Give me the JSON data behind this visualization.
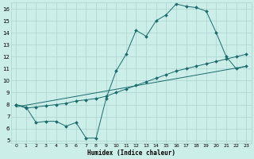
{
  "xlabel": "Humidex (Indice chaleur)",
  "bg_color": "#cceee8",
  "grid_color": "#aad4ce",
  "line_color": "#1a6b6b",
  "xlim": [
    -0.5,
    23.5
  ],
  "ylim": [
    4.8,
    16.5
  ],
  "yticks": [
    5,
    6,
    7,
    8,
    9,
    10,
    11,
    12,
    13,
    14,
    15,
    16
  ],
  "xticks": [
    0,
    1,
    2,
    3,
    4,
    5,
    6,
    7,
    8,
    9,
    10,
    11,
    12,
    13,
    14,
    15,
    16,
    17,
    18,
    19,
    20,
    21,
    22,
    23
  ],
  "line1_x": [
    0,
    1,
    2,
    3,
    4,
    5,
    6,
    7,
    8,
    9,
    10,
    11,
    12,
    13,
    14,
    15,
    16,
    17,
    18,
    19,
    20,
    21,
    22,
    23
  ],
  "line1_y": [
    8.0,
    7.8,
    6.5,
    6.6,
    6.6,
    6.2,
    6.5,
    5.2,
    5.2,
    8.5,
    10.8,
    12.2,
    14.2,
    13.7,
    15.0,
    15.5,
    16.4,
    16.2,
    16.1,
    15.8,
    14.0,
    12.0,
    11.0,
    11.2
  ],
  "line2_x": [
    0,
    23
  ],
  "line2_y": [
    7.8,
    11.2
  ],
  "line3_x": [
    0,
    1,
    2,
    3,
    4,
    5,
    6,
    7,
    8,
    9,
    10,
    11,
    12,
    13,
    14,
    15,
    16,
    17,
    18,
    19,
    20,
    21,
    22,
    23
  ],
  "line3_y": [
    8.0,
    7.7,
    7.8,
    7.9,
    8.0,
    8.1,
    8.3,
    8.4,
    8.5,
    8.7,
    9.0,
    9.3,
    9.6,
    9.9,
    10.2,
    10.5,
    10.8,
    11.0,
    11.2,
    11.4,
    11.6,
    11.8,
    12.0,
    12.2
  ]
}
